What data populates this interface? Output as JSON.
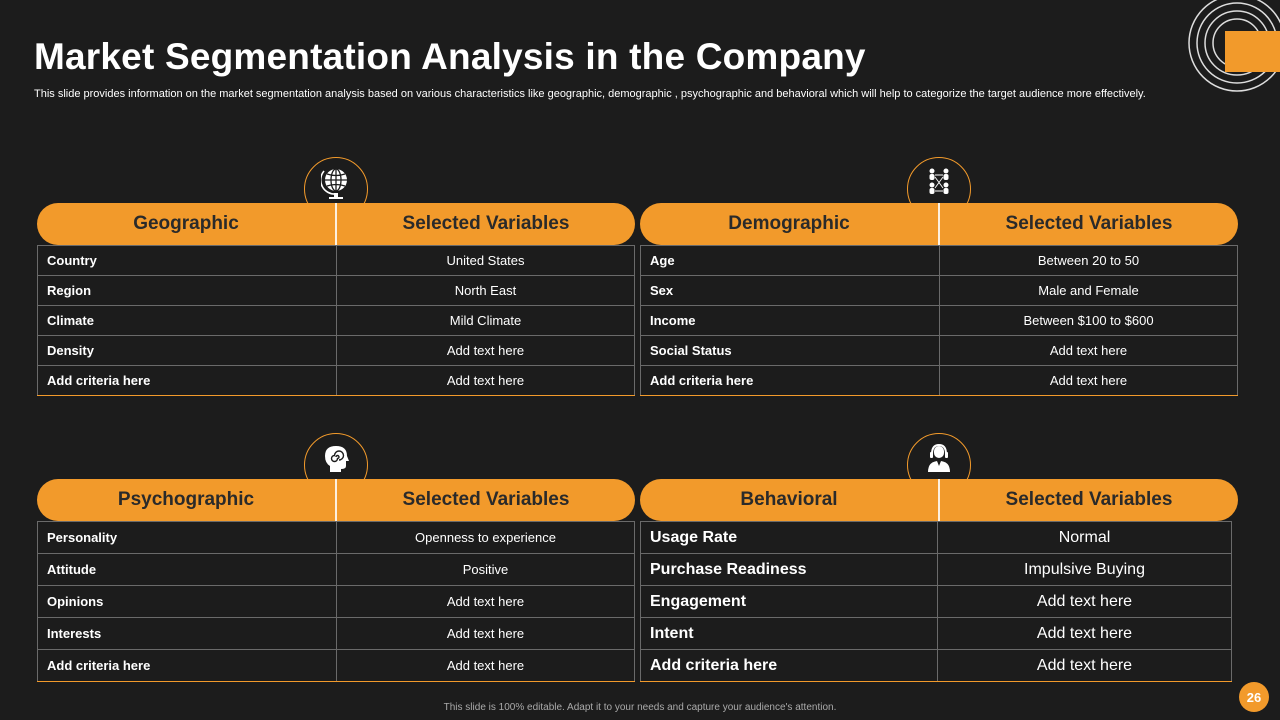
{
  "title": "Market Segmentation Analysis in the Company",
  "subtitle": "This slide provides information on the market segmentation analysis based on various characteristics like geographic, demographic , psychographic and behavioral which will help to categorize the target audience more effectively.",
  "colors": {
    "accent": "#f29a2b",
    "background": "#1c1c1c",
    "border": "#6a6a6a"
  },
  "panels": {
    "geographic": {
      "icon": "globe-icon",
      "header": [
        "Geographic",
        "Selected Variables"
      ],
      "rows": [
        [
          "Country",
          "United States"
        ],
        [
          "Region",
          "North  East"
        ],
        [
          "Climate",
          "Mild Climate"
        ],
        [
          "Density",
          "Add text here"
        ],
        [
          "Add criteria here",
          "Add text here"
        ]
      ]
    },
    "demographic": {
      "icon": "people-network-icon",
      "header": [
        "Demographic",
        "Selected Variables"
      ],
      "rows": [
        [
          "Age",
          "Between 20 to 50"
        ],
        [
          "Sex",
          "Male and Female"
        ],
        [
          "Income",
          "Between $100 to $600"
        ],
        [
          "Social Status",
          "Add text here"
        ],
        [
          "Add criteria here",
          "Add text here"
        ]
      ]
    },
    "psychographic": {
      "icon": "head-spiral-icon",
      "header": [
        "Psychographic",
        "Selected Variables"
      ],
      "rows": [
        [
          "Personality",
          "Openness to experience"
        ],
        [
          "Attitude",
          "Positive"
        ],
        [
          "Opinions",
          "Add text here"
        ],
        [
          "Interests",
          "Add text here"
        ],
        [
          "Add criteria here",
          "Add text here"
        ]
      ]
    },
    "behavioral": {
      "icon": "person-headset-icon",
      "header": [
        "Behavioral",
        "Selected Variables"
      ],
      "rows": [
        [
          "Usage Rate",
          "Normal"
        ],
        [
          "Purchase Readiness",
          "Impulsive Buying"
        ],
        [
          "Engagement",
          "Add text here"
        ],
        [
          "Intent",
          "Add text here"
        ],
        [
          "Add criteria here",
          "Add text here"
        ]
      ]
    }
  },
  "footer": "This slide is 100% editable. Adapt it to your needs and capture your audience's attention.",
  "page_number": "26"
}
